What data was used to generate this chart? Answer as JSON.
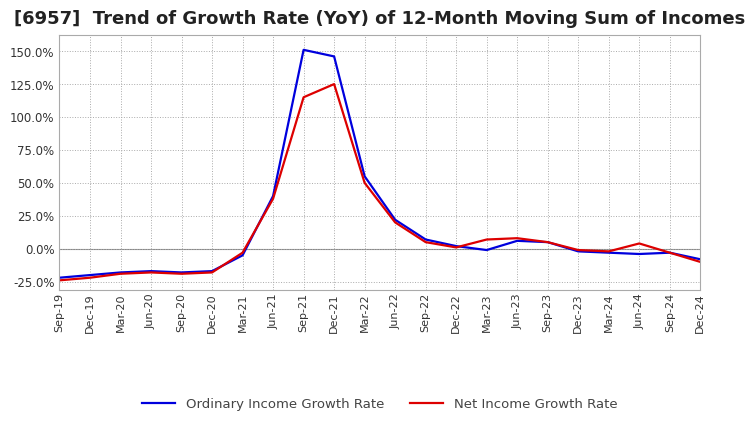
{
  "title": "[6957]  Trend of Growth Rate (YoY) of 12-Month Moving Sum of Incomes",
  "title_fontsize": 13,
  "background_color": "#ffffff",
  "grid_color": "#aaaaaa",
  "x_labels": [
    "Sep-19",
    "Dec-19",
    "Mar-20",
    "Jun-20",
    "Sep-20",
    "Dec-20",
    "Mar-21",
    "Jun-21",
    "Sep-21",
    "Dec-21",
    "Mar-22",
    "Jun-22",
    "Sep-22",
    "Dec-22",
    "Mar-23",
    "Jun-23",
    "Sep-23",
    "Dec-23",
    "Mar-24",
    "Jun-24",
    "Sep-24",
    "Dec-24"
  ],
  "ordinary_income": [
    -22,
    -20,
    -18,
    -17,
    -18,
    -17,
    -5,
    40,
    151,
    146,
    55,
    22,
    7,
    2,
    -1,
    6,
    5,
    -2,
    -3,
    -4,
    -3,
    -8
  ],
  "net_income": [
    -24,
    -22,
    -19,
    -18,
    -19,
    -18,
    -3,
    38,
    115,
    125,
    50,
    20,
    5,
    1,
    7,
    8,
    5,
    -1,
    -2,
    4,
    -3,
    -10
  ],
  "ordinary_color": "#0000dd",
  "net_color": "#dd0000",
  "ylim": [
    -31.25,
    162.5
  ],
  "yticks": [
    -25,
    0,
    25,
    50,
    75,
    100,
    125,
    150
  ],
  "legend_labels": [
    "Ordinary Income Growth Rate",
    "Net Income Growth Rate"
  ],
  "line_width": 1.6,
  "spine_color": "#aaaaaa"
}
